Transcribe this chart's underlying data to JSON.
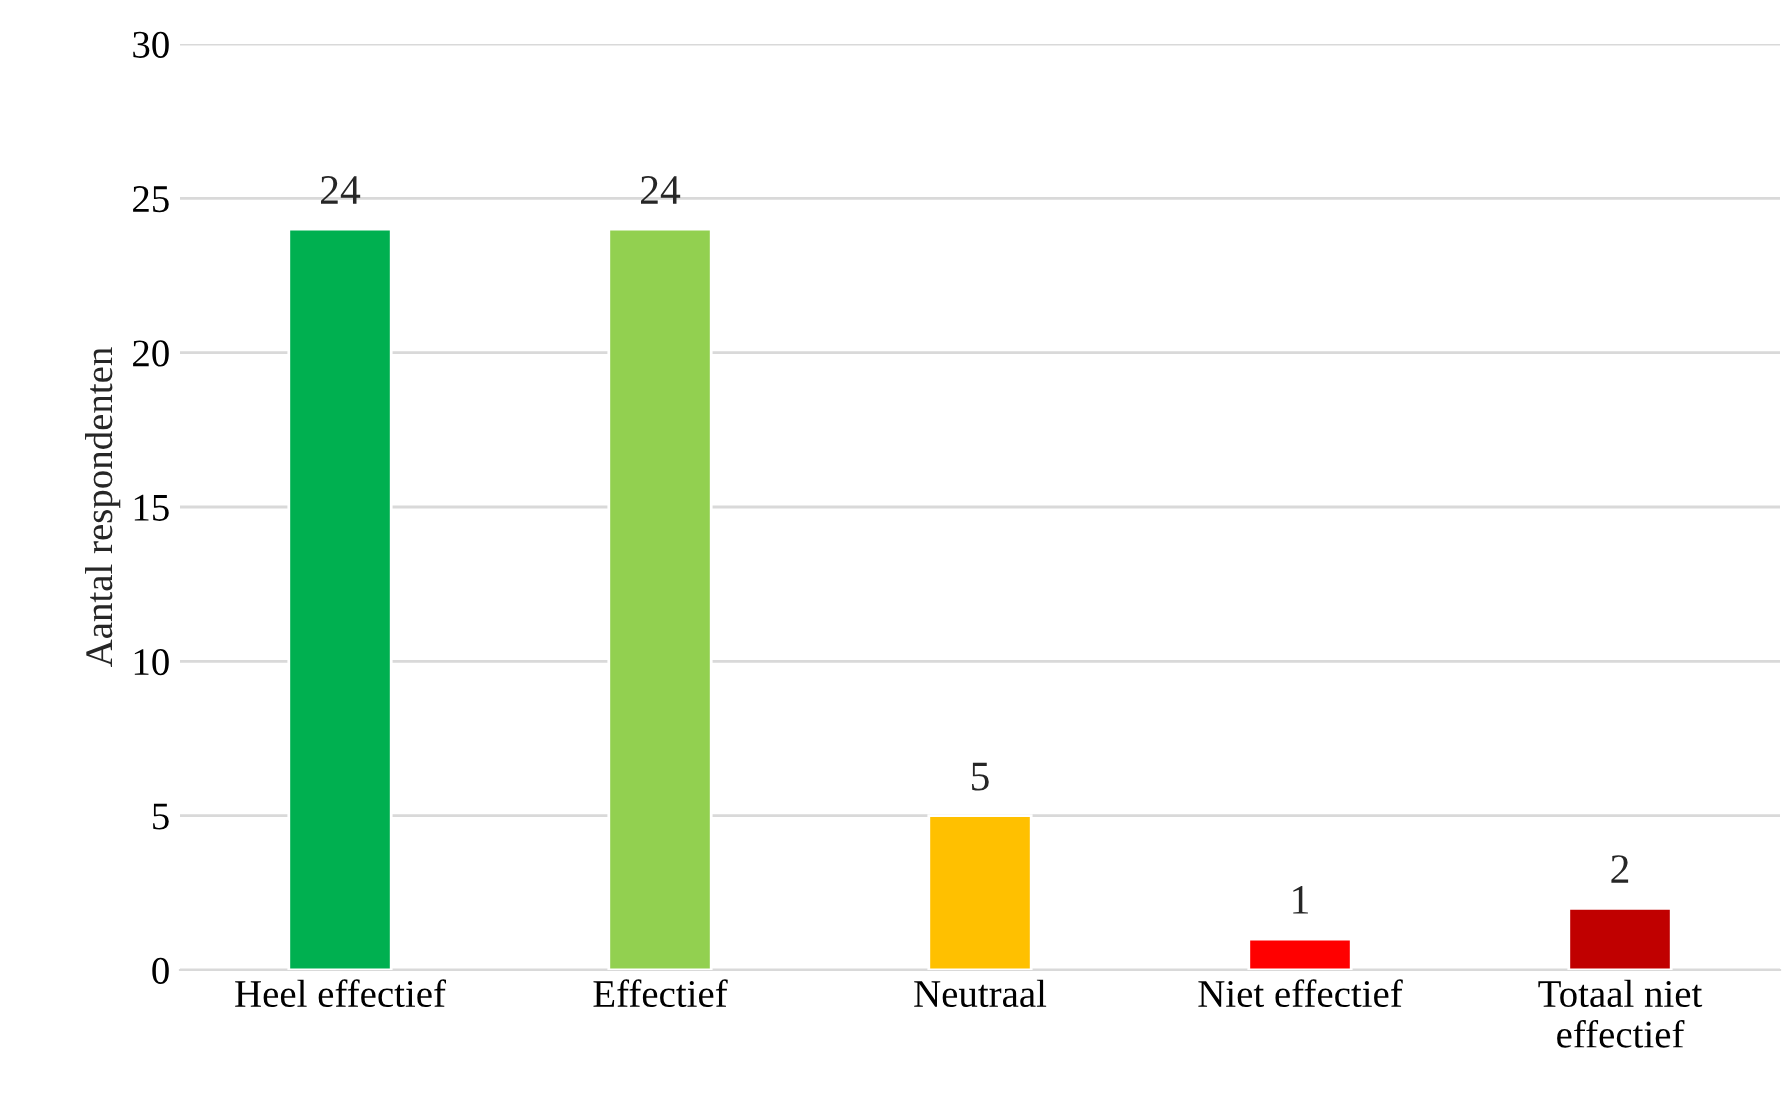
{
  "chart_data": {
    "type": "bar",
    "ylabel": "Aantal respondenten",
    "categories": [
      "Heel effectief",
      "Effectief",
      "Neutraal",
      "Niet effectief",
      "Totaal niet effectief"
    ],
    "values": [
      24,
      24,
      5,
      1,
      2
    ],
    "colors": [
      "#00b050",
      "#92d050",
      "#ffc000",
      "#ff0000",
      "#c00000"
    ],
    "ylim": [
      0,
      30
    ],
    "yticks": [
      0,
      5,
      10,
      15,
      20,
      25,
      30
    ],
    "grid": "y",
    "data_labels": true,
    "legend": false
  }
}
